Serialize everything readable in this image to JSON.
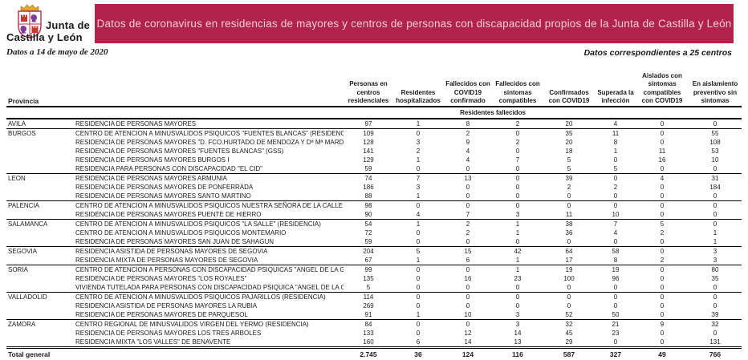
{
  "header": {
    "logo_line1": "Junta de",
    "logo_line2": "Castilla y León",
    "title": "Datos de coronavirus en residencias de mayores y centros de personas con discapacidad propios de la Junta de Castilla y León",
    "date_note": "Datos a 14 de mayo de 2020",
    "centers_note": "Datos correspondientes a 25 centros",
    "banner_color": "#b2234b"
  },
  "table": {
    "provincia_label": "Provincia",
    "columns": [
      "Personas en centros residenciales",
      "Residentes hospitalizados",
      "Fallecidos con COVID19 confirmado",
      "Fallecidos con sintomas compatibles",
      "Confirmados con COVID19",
      "Superada la infección",
      "Aislados con sintomas compatibles con COVID19",
      "En aislamiento preventivo sin sintomas"
    ],
    "subheader": "Residentes fallecidos",
    "provinces": [
      {
        "name": "AVILA",
        "centers": [
          {
            "name": "RESIDENCIA DE PERSONAS MAYORES",
            "values": [
              97,
              1,
              8,
              2,
              20,
              4,
              0,
              0
            ]
          }
        ]
      },
      {
        "name": "BURGOS",
        "centers": [
          {
            "name": "CENTRO DE ATENCION A MINUSVALIDOS PSIQUICOS \"FUENTES BLANCAS\" (RESIDENCIA",
            "values": [
              109,
              0,
              2,
              0,
              35,
              11,
              0,
              55
            ]
          },
          {
            "name": "RESIDENCIA DE PERSONAS MAYORES \"D. FCO.HURTADO DE MENDOZA Y Dª Mª MARDON",
            "values": [
              128,
              3,
              9,
              2,
              20,
              8,
              0,
              108
            ]
          },
          {
            "name": "RESIDENCIA DE PERSONAS MAYORES \"FUENTES BLANCAS\" (GSS)",
            "values": [
              141,
              2,
              4,
              0,
              18,
              1,
              11,
              53
            ]
          },
          {
            "name": "RESIDENCIA DE PERSONAS MAYORES BURGOS I",
            "values": [
              129,
              1,
              4,
              7,
              5,
              0,
              16,
              10
            ]
          },
          {
            "name": "RESIDENCIA PARA PERSONAS CON DISCAPACIDAD  \"EL CID\"",
            "values": [
              59,
              0,
              0,
              0,
              5,
              5,
              0,
              0
            ]
          }
        ]
      },
      {
        "name": "LEON",
        "centers": [
          {
            "name": "RESIDENCIA DE PERSONAS MAYORES ARMUNIA",
            "values": [
              74,
              7,
              13,
              0,
              39,
              0,
              4,
              31
            ]
          },
          {
            "name": "RESIDENCIA DE PERSONAS MAYORES DE PONFERRADA",
            "values": [
              186,
              3,
              0,
              0,
              2,
              2,
              0,
              184
            ]
          },
          {
            "name": "RESIDENCIA DE PERSONAS MAYORES SANTO MARTINO",
            "values": [
              88,
              1,
              0,
              0,
              0,
              0,
              0,
              0
            ]
          }
        ]
      },
      {
        "name": "PALENCIA",
        "centers": [
          {
            "name": "CENTRO DE ATENCION A MINUSVALIDOS PSIQUICOS NUESTRA SEÑORA DE LA CALLE",
            "values": [
              98,
              0,
              0,
              0,
              0,
              0,
              0,
              0
            ]
          },
          {
            "name": "RESIDENCIA DE PERSONAS MAYORES PUENTE DE HIERRO",
            "values": [
              90,
              4,
              7,
              3,
              11,
              10,
              0,
              0
            ]
          }
        ]
      },
      {
        "name": "SALAMANCA",
        "centers": [
          {
            "name": "CENTRO DE ATENCION A MINUSVALIDOS PSIQUICOS \"LA SALLE\" (RESIDENCIA)",
            "values": [
              54,
              1,
              2,
              1,
              38,
              7,
              5,
              0
            ]
          },
          {
            "name": "CENTRO DE ATENCION A MINUSVALIDOS PSIQUICOS MONTEMARIO",
            "values": [
              72,
              0,
              2,
              1,
              36,
              4,
              2,
              1
            ]
          },
          {
            "name": "RESIDENCIA DE PERSONAS MAYORES SAN JUAN DE SAHAGUN",
            "values": [
              59,
              0,
              0,
              0,
              0,
              0,
              0,
              1
            ]
          }
        ]
      },
      {
        "name": "SEGOVIA",
        "centers": [
          {
            "name": "RESIDENCIA ASISTIDA DE PERSONAS MAYORES DE SEGOVIA",
            "values": [
              204,
              5,
              15,
              42,
              64,
              58,
              0,
              3
            ]
          },
          {
            "name": "RESIDENCIA MIXTA DE PERSONAS MAYORES DE SEGOVIA",
            "values": [
              67,
              1,
              6,
              1,
              17,
              8,
              2,
              3
            ]
          }
        ]
      },
      {
        "name": "SORIA",
        "centers": [
          {
            "name": "CENTRO DE ATENCION A PERSONAS CON DISCAPACIDAD PSIQUICAS \"ANGEL DE LA GUA",
            "values": [
              99,
              0,
              0,
              1,
              19,
              19,
              0,
              80
            ]
          },
          {
            "name": "RESIDENCIA DE PERSONAS MAYORES \"LOS ROYALES\"",
            "values": [
              135,
              0,
              16,
              23,
              100,
              96,
              0,
              35
            ]
          },
          {
            "name": "VIVIENDA TUTELADA PARA PERSONAS CON DISCAPACIDAD PSIQUICA \"ANGEL DE LA GU",
            "values": [
              5,
              0,
              0,
              0,
              0,
              0,
              0,
              0
            ]
          }
        ]
      },
      {
        "name": "VALLADOLID",
        "centers": [
          {
            "name": "CENTRO DE ATENCION A MINUSVALIDOS PSIQUICOS PAJARILLOS (RESIDENCIA)",
            "values": [
              114,
              0,
              0,
              0,
              0,
              0,
              0,
              0
            ]
          },
          {
            "name": "RESIDENCIA ASISTIDA DE PERSONAS MAYORES LA RUBIA",
            "values": [
              269,
              0,
              0,
              0,
              0,
              0,
              0,
              0
            ]
          },
          {
            "name": "RESIDENCIA DE PERSONAS MAYORES DE PARQUESOL",
            "values": [
              91,
              1,
              10,
              3,
              52,
              50,
              0,
              39
            ]
          }
        ]
      },
      {
        "name": "ZAMORA",
        "centers": [
          {
            "name": "CENTRO REGIONAL DE MINUSVALIDOS VIRGEN DEL YERMO (RESIDENCIA)",
            "values": [
              84,
              0,
              0,
              3,
              32,
              21,
              9,
              32
            ]
          },
          {
            "name": "RESIDENCIA DE PERSONAS MAYORES LOS TRES ARBOLES",
            "values": [
              133,
              0,
              12,
              14,
              45,
              23,
              0,
              0
            ]
          },
          {
            "name": "RESIDENCIA MIXTA \"LOS VALLES\"  DE BENAVENTE",
            "values": [
              160,
              6,
              14,
              13,
              29,
              0,
              0,
              131
            ]
          }
        ]
      }
    ],
    "total": {
      "label": "Total general",
      "values": [
        "2.745",
        "36",
        "124",
        "116",
        "587",
        "327",
        "49",
        "766"
      ]
    }
  }
}
